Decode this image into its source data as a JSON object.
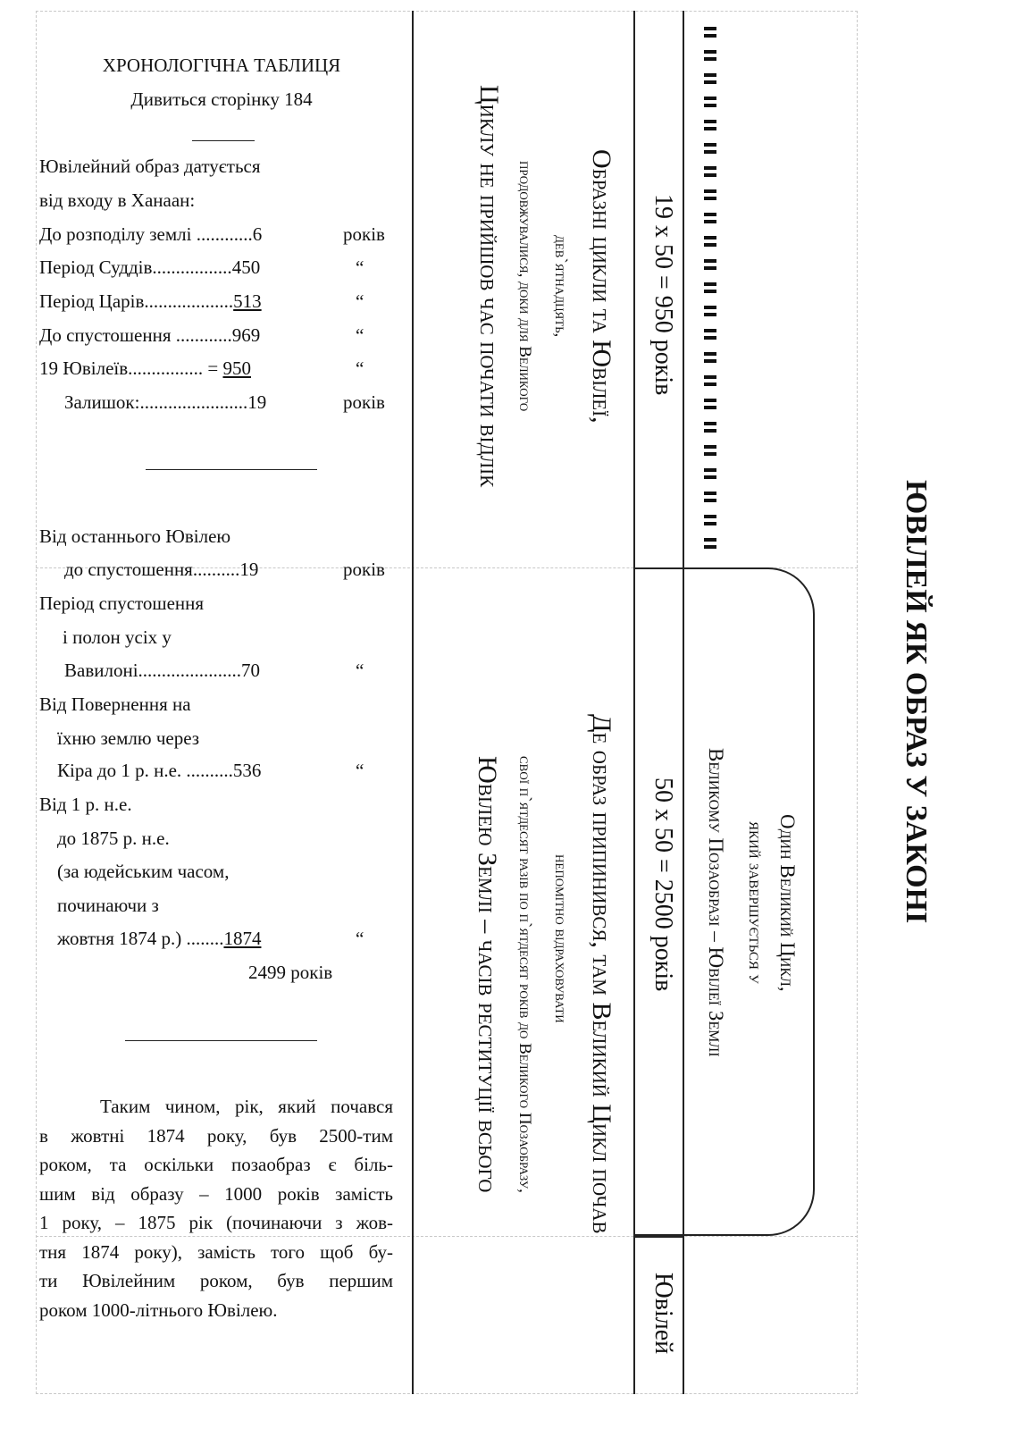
{
  "title": "ЮВІЛЕЙ ЯК ОБРАЗ У ЗАКОНІ",
  "table": {
    "heading": "ХРОНОЛОГІЧНА ТАБЛИЦЯ",
    "subheading": "Дивиться сторінку 184",
    "intro": [
      "Ювілейний образ датується",
      "від входу в Ханаан:"
    ],
    "rows1": [
      {
        "label": "До розподілу землі ............",
        "value": "6",
        "unit": "років"
      },
      {
        "label": "Період Суддів.................",
        "value": "450",
        "unit": "“"
      },
      {
        "label": "Період Царів...................",
        "value": "513",
        "unit": "“",
        "underline": true
      },
      {
        "label": "До спустошення ............",
        "value": "969",
        "unit": "“"
      },
      {
        "label": "19 Ювілеїв................ = ",
        "value": "950",
        "unit": "“",
        "underline": true
      },
      {
        "label": "Залишок:.......................",
        "value": "19",
        "unit": "років"
      }
    ],
    "block2": {
      "l1": "Від останнього Ювілею",
      "l2": "до спустошення..........",
      "v2": "19",
      "u2": "років",
      "l3": "Період спустошення",
      "l4": "і полон усіх у",
      "l5": "Вавилоні......................",
      "v5": "70",
      "u5": "“",
      "l6": "Від Повернення на",
      "l7": "їхню землю через",
      "l8": "Кіра до 1 р. н.е. ..........",
      "v8": "536",
      "u8": "“",
      "l9": "Від 1 р. н.е.",
      "l10": "до 1875 р. н.е.",
      "l11": "(за юдейським часом,",
      "l12": "починаючи з",
      "l13": "жовтня 1874 р.) ........",
      "v13": "1874",
      "u13": "“",
      "total": "2499 років"
    },
    "paragraph": [
      "Таким чином, рік, який почався",
      "в жовтні 1874 року, був 2500-тим",
      "роком, та оскільки позаобраз є біль-",
      "шим від образу – 1000 років замість",
      "1 року, – 1875 рік (починаючи з жов-",
      "тня 1874 року), замість того щоб бу-",
      "ти Ювілейним роком, був першим",
      "роком 1000-літнього Ювілею."
    ]
  },
  "diagram": {
    "upper": [
      "Образні цикли та Ювілеї,",
      "дев`ятнадцять,",
      "продовжувалися, доки для Великого",
      "Циклу не прийшов час почати відлік"
    ],
    "lower": [
      "Де образ припинився, там Великий Цикл почав",
      "непомітно відраховувати",
      "свої п`ятдесят разів по п`ятдесят років до Великого Позаобразу,",
      "Ювілею Землі – часів реституції всього"
    ],
    "calc1": "19 x 50 = 950 років",
    "calc2": "50 x 50 = 2500 років",
    "jubilee": "Ювілей",
    "box": [
      "Один Великий Цикл,",
      "який завершується у",
      "Великому Позаобразі – Ювілеї Землі"
    ]
  }
}
